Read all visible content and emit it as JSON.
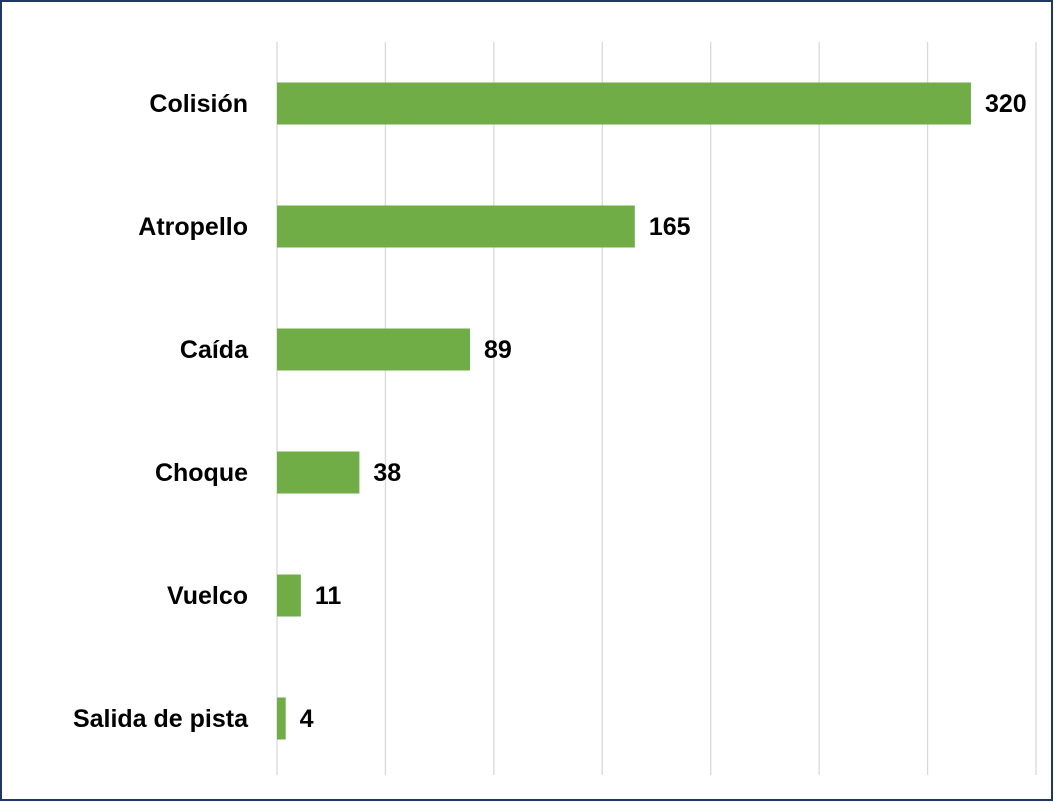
{
  "chart_data": {
    "type": "bar",
    "orientation": "horizontal",
    "categories": [
      "Colisión",
      "Atropello",
      "Caída",
      "Choque",
      "Vuelco",
      "Salida de pista"
    ],
    "values": [
      320,
      165,
      89,
      38,
      11,
      4
    ],
    "color": "#70ad47",
    "xlim": [
      0,
      350
    ],
    "xticks": [
      0,
      50,
      100,
      150,
      200,
      250,
      300,
      350
    ],
    "grid": true
  }
}
